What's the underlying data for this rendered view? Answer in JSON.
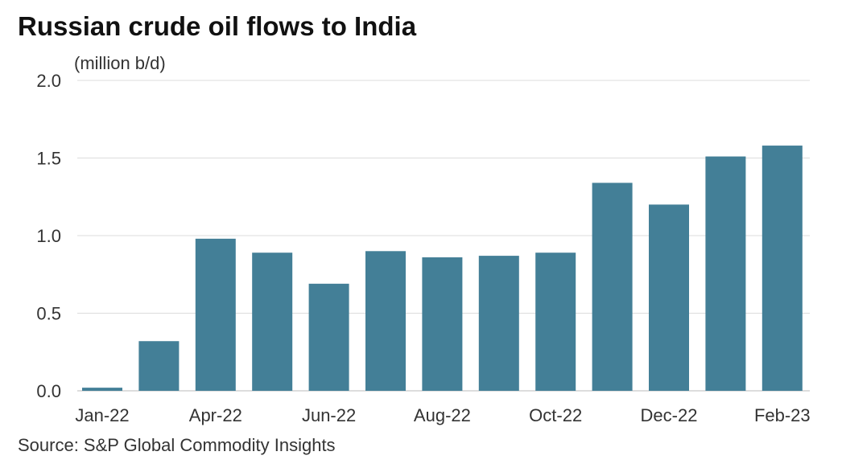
{
  "chart_data": {
    "type": "bar",
    "title": "Russian crude oil flows to India",
    "ylabel": "(million b/d)",
    "xlabel": "",
    "source": "Source: S&P Global Commodity Insights",
    "categories": [
      "Jan-22",
      "Mar-22",
      "Apr-22",
      "May-22",
      "Jun-22",
      "Jul-22",
      "Aug-22",
      "Sep-22",
      "Oct-22",
      "Nov-22",
      "Dec-22",
      "Jan-23",
      "Feb-23"
    ],
    "tick_labels": [
      "Jan-22",
      "",
      "Apr-22",
      "",
      "Jun-22",
      "",
      "Aug-22",
      "",
      "Oct-22",
      "",
      "Dec-22",
      "",
      "Feb-23"
    ],
    "values": [
      0.02,
      0.32,
      0.98,
      0.89,
      0.69,
      0.9,
      0.86,
      0.87,
      0.89,
      1.34,
      1.2,
      1.51,
      1.58
    ],
    "ylim": [
      0,
      2.0
    ],
    "yticks": [
      "0.0",
      "0.5",
      "1.0",
      "1.5",
      "2.0"
    ],
    "grid": true,
    "color": "#437f97"
  }
}
